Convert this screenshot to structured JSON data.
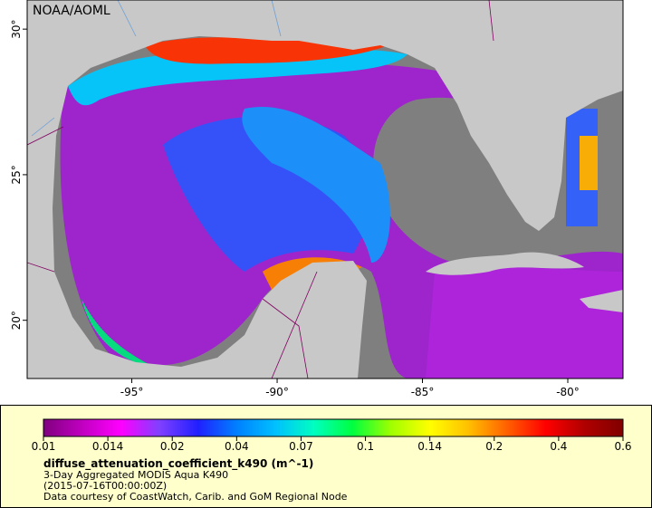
{
  "map": {
    "title": "NOAA/AOML",
    "xlim": [
      -98.6,
      -78.1
    ],
    "ylim": [
      18,
      31
    ],
    "xticks": [
      {
        "value": -95,
        "label": "-95°"
      },
      {
        "value": -90,
        "label": "-90°"
      },
      {
        "value": -85,
        "label": "-85°"
      },
      {
        "value": -80,
        "label": "-80°"
      }
    ],
    "yticks": [
      {
        "value": 20,
        "label": "20°"
      },
      {
        "value": 25,
        "label": "25°"
      },
      {
        "value": 30,
        "label": "30°"
      }
    ]
  },
  "colorbar": {
    "ticks": [
      0.01,
      0.014,
      0.02,
      0.04,
      0.07,
      0.1,
      0.14,
      0.2,
      0.4,
      0.6
    ],
    "palette": [
      "#80007f",
      "#c000c0",
      "#ff00ff",
      "#8040ff",
      "#2020ff",
      "#0080ff",
      "#00c0ff",
      "#00ffc0",
      "#00ff40",
      "#a0ff00",
      "#ffff00",
      "#ffc000",
      "#ff6000",
      "#ff0000",
      "#b00000",
      "#800000"
    ],
    "variable": "diffuse_attenuation_coefficient_k490 (m^-1)",
    "lines": [
      "3-Day Aggregated MODIS Aqua K490",
      "(2015-07-16T00:00:00Z)",
      "Data courtesy of CoastWatch, Carib. and GoM Regional Node"
    ]
  }
}
